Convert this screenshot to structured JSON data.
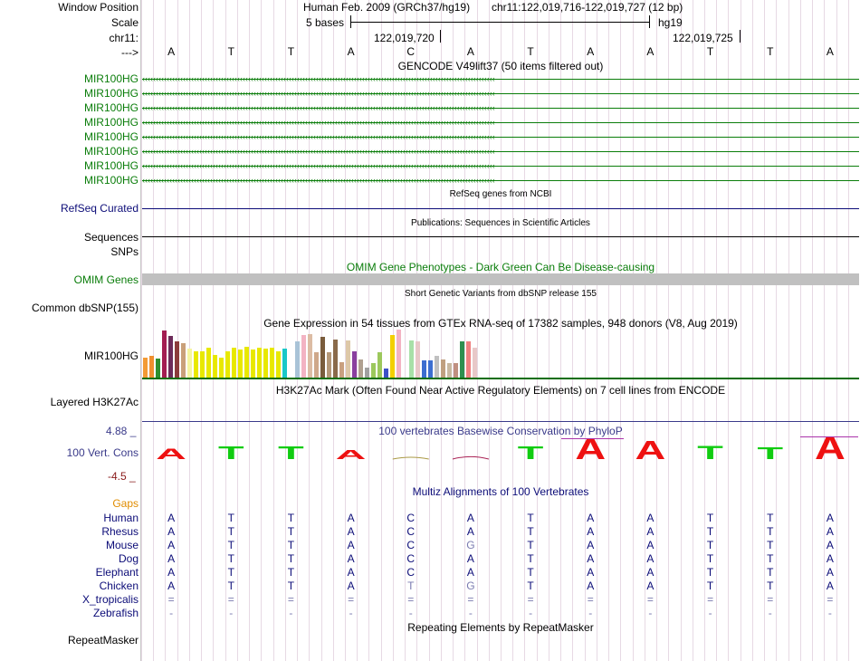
{
  "header": {
    "window_position_label": "Window Position",
    "assembly": "Human Feb. 2009 (GRCh37/hg19)",
    "position": "chr11:122,019,716-122,019,727 (12 bp)",
    "scale_label": "Scale",
    "scale_text": "5 bases",
    "scale_db": "hg19",
    "chrom_label": "chr11:",
    "coord_1": "122,019,720",
    "coord_2": "122,019,725",
    "strand_label": "--->"
  },
  "sequence": [
    "A",
    "T",
    "T",
    "A",
    "C",
    "A",
    "T",
    "A",
    "A",
    "T",
    "T",
    "A"
  ],
  "tracks": {
    "gencode_title": "GENCODE V49lift37 (50 items filtered out)",
    "gencode_items": [
      "MIR100HG",
      "MIR100HG",
      "MIR100HG",
      "MIR100HG",
      "MIR100HG",
      "MIR100HG",
      "MIR100HG",
      "MIR100HG"
    ],
    "refseq_title": "RefSeq genes from NCBI",
    "refseq_label": "RefSeq Curated",
    "pubs_title": "Publications: Sequences in Scientific Articles",
    "pubs_label": "Sequences",
    "snps_label": "SNPs",
    "omim_title": "OMIM Gene Phenotypes - Dark Green Can Be Disease-causing",
    "omim_label": "OMIM Genes",
    "dbsnp_title": "Short Genetic Variants from dbSNP release 155",
    "dbsnp_label": "Common dbSNP(155)",
    "gtex_title": "Gene Expression in 54 tissues from GTEx RNA-seq of 17382 samples, 948 donors (V8, Aug 2019)",
    "gtex_label": "MIR100HG",
    "h3k27_title": "H3K27Ac Mark (Often Found Near Active Regulatory Elements) on 7 cell lines from ENCODE",
    "h3k27_label": "Layered H3K27Ac",
    "cons_title": "100 vertebrates Basewise Conservation by PhyloP",
    "cons_label": "100 Vert. Cons",
    "cons_max": "4.88 _",
    "cons_min": "-4.5 _",
    "multiz_title": "Multiz Alignments of 100 Vertebrates",
    "gaps_label": "Gaps",
    "repeat_title": "Repeating Elements by RepeatMasker",
    "repeat_label": "RepeatMasker"
  },
  "gtex_bars": [
    {
      "c": "#f39a35",
      "v": 0.42
    },
    {
      "c": "#ef8f2f",
      "v": 0.45
    },
    {
      "c": "#2f8f2f",
      "v": 0.4
    },
    {
      "c": "#a31d52",
      "v": 0.98
    },
    {
      "c": "#6d2b5a",
      "v": 0.86
    },
    {
      "c": "#8b3b3b",
      "v": 0.75
    },
    {
      "c": "#c9a07a",
      "v": 0.72
    },
    {
      "c": "#f5f5a0",
      "v": 0.6
    },
    {
      "c": "#e8e800",
      "v": 0.55
    },
    {
      "c": "#e8e800",
      "v": 0.55
    },
    {
      "c": "#e8e800",
      "v": 0.62
    },
    {
      "c": "#e8e800",
      "v": 0.48
    },
    {
      "c": "#e8e800",
      "v": 0.42
    },
    {
      "c": "#e8e800",
      "v": 0.55
    },
    {
      "c": "#e8e800",
      "v": 0.62
    },
    {
      "c": "#e8e800",
      "v": 0.58
    },
    {
      "c": "#e8e800",
      "v": 0.64
    },
    {
      "c": "#e8e800",
      "v": 0.58
    },
    {
      "c": "#e8e800",
      "v": 0.62
    },
    {
      "c": "#e8e800",
      "v": 0.6
    },
    {
      "c": "#e8e800",
      "v": 0.62
    },
    {
      "c": "#e8e800",
      "v": 0.55
    },
    {
      "c": "#19c8c8",
      "v": 0.6
    },
    {
      "c": "#ffffff",
      "v": 0.0
    },
    {
      "c": "#a9c3d7",
      "v": 0.75
    },
    {
      "c": "#f3b3c3",
      "v": 0.88
    },
    {
      "c": "#dcbca4",
      "v": 0.9
    },
    {
      "c": "#cfa88a",
      "v": 0.52
    },
    {
      "c": "#7a5c3c",
      "v": 0.85
    },
    {
      "c": "#b59878",
      "v": 0.52
    },
    {
      "c": "#8a6a4a",
      "v": 0.8
    },
    {
      "c": "#c9a080",
      "v": 0.32
    },
    {
      "c": "#ddc8a8",
      "v": 0.78
    },
    {
      "c": "#8a3f9f",
      "v": 0.55
    },
    {
      "c": "#b0a090",
      "v": 0.38
    },
    {
      "c": "#a0a0a0",
      "v": 0.2
    },
    {
      "c": "#9cc85c",
      "v": 0.3
    },
    {
      "c": "#9cc85c",
      "v": 0.52
    },
    {
      "c": "#3c50c8",
      "v": 0.18
    },
    {
      "c": "#f3d000",
      "v": 0.88
    },
    {
      "c": "#f3b3c3",
      "v": 1.0
    },
    {
      "c": "#ffffff",
      "v": 0.0
    },
    {
      "c": "#a8e0a8",
      "v": 0.78
    },
    {
      "c": "#e8c8c8",
      "v": 0.75
    },
    {
      "c": "#3c6ed0",
      "v": 0.35
    },
    {
      "c": "#3c6ed0",
      "v": 0.35
    },
    {
      "c": "#c0c0c0",
      "v": 0.45
    },
    {
      "c": "#c0a080",
      "v": 0.38
    },
    {
      "c": "#c8b8a0",
      "v": 0.3
    },
    {
      "c": "#c09080",
      "v": 0.3
    },
    {
      "c": "#2f8f4f",
      "v": 0.75
    },
    {
      "c": "#f08080",
      "v": 0.75
    },
    {
      "c": "#e8c8c8",
      "v": 0.62
    }
  ],
  "phylop": [
    {
      "h": "A",
      "col": "#ee1111",
      "dir": 1,
      "v": 0.45
    },
    {
      "h": "T",
      "col": "#11cc11",
      "dir": 1,
      "v": 0.55
    },
    {
      "h": "T",
      "col": "#11cc11",
      "dir": 1,
      "v": 0.55
    },
    {
      "h": "A",
      "col": "#ee1111",
      "dir": 1,
      "v": 0.4
    },
    {
      "h": "",
      "col": "#aa9944",
      "dir": 1,
      "v": 0.04
    },
    {
      "h": "",
      "col": "#aa2255",
      "dir": 1,
      "v": 0.1
    },
    {
      "h": "T",
      "col": "#11cc11",
      "dir": 1,
      "v": 0.55
    },
    {
      "h": "A",
      "col": "#ee1111",
      "dir": 1,
      "v": 0.9
    },
    {
      "h": "A",
      "col": "#ee1111",
      "dir": 1,
      "v": 0.8
    },
    {
      "h": "T",
      "col": "#11cc11",
      "dir": 1,
      "v": 0.6
    },
    {
      "h": "T",
      "col": "#11cc11",
      "dir": 1,
      "v": 0.5
    },
    {
      "h": "A",
      "col": "#ee1111",
      "dir": 1,
      "v": 1.0
    }
  ],
  "multiz": [
    {
      "species": "Human",
      "bases": [
        "A",
        "T",
        "T",
        "A",
        "C",
        "A",
        "T",
        "A",
        "A",
        "T",
        "T",
        "A"
      ]
    },
    {
      "species": "Rhesus",
      "bases": [
        "A",
        "T",
        "T",
        "A",
        "C",
        "A",
        "T",
        "A",
        "A",
        "T",
        "T",
        "A"
      ]
    },
    {
      "species": "Mouse",
      "bases": [
        "A",
        "T",
        "T",
        "A",
        "C",
        "G",
        "T",
        "A",
        "A",
        "T",
        "T",
        "A"
      ]
    },
    {
      "species": "Dog",
      "bases": [
        "A",
        "T",
        "T",
        "A",
        "C",
        "A",
        "T",
        "A",
        "A",
        "T",
        "T",
        "A"
      ]
    },
    {
      "species": "Elephant",
      "bases": [
        "A",
        "T",
        "T",
        "A",
        "C",
        "A",
        "T",
        "A",
        "A",
        "T",
        "T",
        "A"
      ]
    },
    {
      "species": "Chicken",
      "bases": [
        "A",
        "T",
        "T",
        "A",
        "T",
        "G",
        "T",
        "A",
        "A",
        "T",
        "T",
        "A"
      ]
    },
    {
      "species": "X_tropicalis",
      "bases": [
        "=",
        "=",
        "=",
        "=",
        "=",
        "=",
        "=",
        "=",
        "=",
        "=",
        "=",
        "="
      ]
    },
    {
      "species": "Zebrafish",
      "bases": [
        "-",
        "-",
        "-",
        "-",
        "-",
        "-",
        "-",
        "-",
        "-",
        "-",
        "-",
        "-"
      ]
    }
  ],
  "colors": {
    "gencode": "#0a7d0a",
    "refseq": "#0c0c78",
    "omim": "#c0c0c0",
    "cons_label": "#3a3a8a",
    "cons_min": "#8a1a1a",
    "gaps": "#e08c00",
    "species": "#0c0c78"
  }
}
